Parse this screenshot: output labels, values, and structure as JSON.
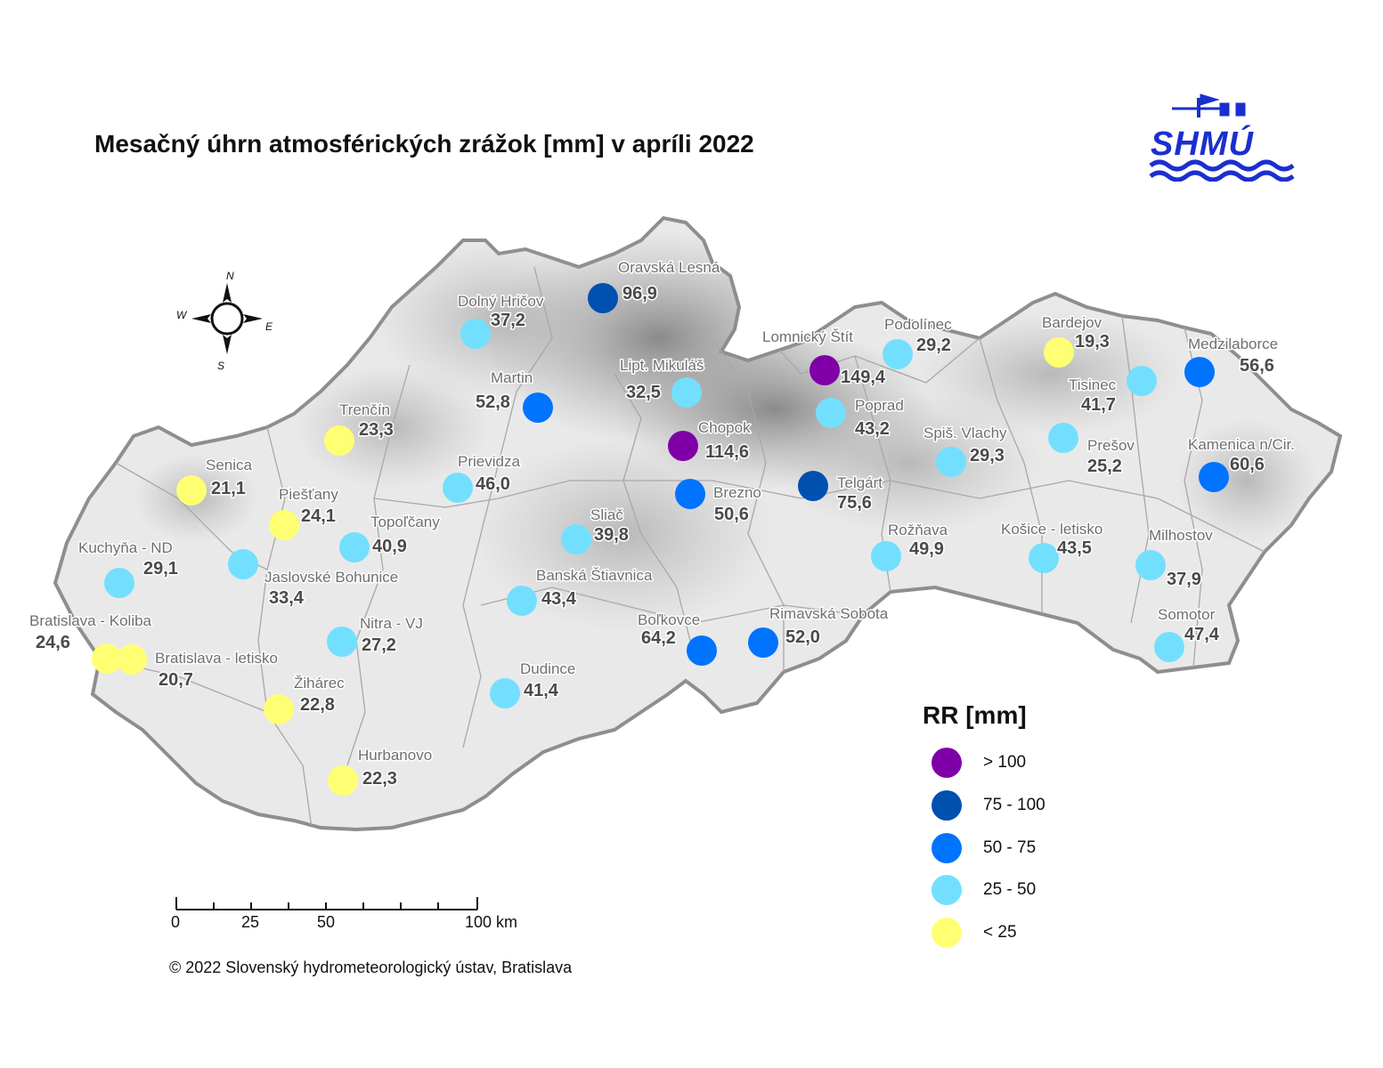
{
  "title": "Mesačný úhrn atmosférických zrážok [mm] v apríli 2022",
  "logo": {
    "text": "SHMÚ",
    "color": "#1a2fcf"
  },
  "compass": {
    "n": "N",
    "s": "S",
    "e": "E",
    "w": "W"
  },
  "scale_bar": {
    "ticks": [
      "0",
      "25",
      "50",
      "100 km"
    ]
  },
  "copyright": "© 2022 Slovenský hydrometeorologický ústav, Bratislava",
  "legend": {
    "title": "RR [mm]",
    "classes": [
      {
        "label": "> 100",
        "color": "#8000a8"
      },
      {
        "label": "75 - 100",
        "color": "#0050b0"
      },
      {
        "label": "50 - 75",
        "color": "#0073ff"
      },
      {
        "label": "25 - 50",
        "color": "#73dfff"
      },
      {
        "label": "< 25",
        "color": "#ffff73"
      }
    ]
  },
  "stations": [
    {
      "name": "Oravská Lesná",
      "value": "96,9",
      "cls": 1
    },
    {
      "name": "Dolný Hričov",
      "value": "37,2",
      "cls": 3
    },
    {
      "name": "Lomnický Štít",
      "value": "149,4",
      "cls": 0
    },
    {
      "name": "Podolínec",
      "value": "29,2",
      "cls": 3
    },
    {
      "name": "Bardejov",
      "value": "19,3",
      "cls": 4
    },
    {
      "name": "Medzilaborce",
      "value": "56,6",
      "cls": 2
    },
    {
      "name": "Martin",
      "value": "52,8",
      "cls": 2
    },
    {
      "name": "Lipt. Mikuláš",
      "value": "32,5",
      "cls": 3
    },
    {
      "name": "Tisinec",
      "value": "41,7",
      "cls": 3
    },
    {
      "name": "Trenčín",
      "value": "23,3",
      "cls": 4
    },
    {
      "name": "Poprad",
      "value": "43,2",
      "cls": 3
    },
    {
      "name": "Chopok",
      "value": "114,6",
      "cls": 0
    },
    {
      "name": "Spiš. Vlachy",
      "value": "29,3",
      "cls": 3
    },
    {
      "name": "Prešov",
      "value": "25,2",
      "cls": 3
    },
    {
      "name": "Kamenica n/Cir.",
      "value": "60,6",
      "cls": 2
    },
    {
      "name": "Senica",
      "value": "21,1",
      "cls": 4
    },
    {
      "name": "Prievidza",
      "value": "46,0",
      "cls": 3
    },
    {
      "name": "Brezno",
      "value": "50,6",
      "cls": 2
    },
    {
      "name": "Telgárt",
      "value": "75,6",
      "cls": 1
    },
    {
      "name": "Piešťany",
      "value": "24,1",
      "cls": 4
    },
    {
      "name": "Topoľčany",
      "value": "40,9",
      "cls": 3
    },
    {
      "name": "Sliač",
      "value": "39,8",
      "cls": 3
    },
    {
      "name": "Kuchyňa - ND",
      "value": "29,1",
      "cls": 3
    },
    {
      "name": "Jaslovské Bohunice",
      "value": "33,4",
      "cls": 3
    },
    {
      "name": "Rožňava",
      "value": "49,9",
      "cls": 3
    },
    {
      "name": "Košice - letisko",
      "value": "43,5",
      "cls": 3
    },
    {
      "name": "Milhostov",
      "value": "37,9",
      "cls": 3
    },
    {
      "name": "Banská Štiavnica",
      "value": "43,4",
      "cls": 3
    },
    {
      "name": "Bratislava - Koliba",
      "value": "24,6",
      "cls": 4
    },
    {
      "name": "Bratislava - letisko",
      "value": "20,7",
      "cls": 4
    },
    {
      "name": "Nitra - VJ",
      "value": "27,2",
      "cls": 3
    },
    {
      "name": "Boľkovce",
      "value": "64,2",
      "cls": 2
    },
    {
      "name": "Rimavská Sobota",
      "value": "52,0",
      "cls": 2
    },
    {
      "name": "Somotor",
      "value": "47,4",
      "cls": 3
    },
    {
      "name": "Dudince",
      "value": "41,4",
      "cls": 3
    },
    {
      "name": "Žihárec",
      "value": "22,8",
      "cls": 4
    },
    {
      "name": "Hurbanovo",
      "value": "22,3",
      "cls": 4
    }
  ]
}
